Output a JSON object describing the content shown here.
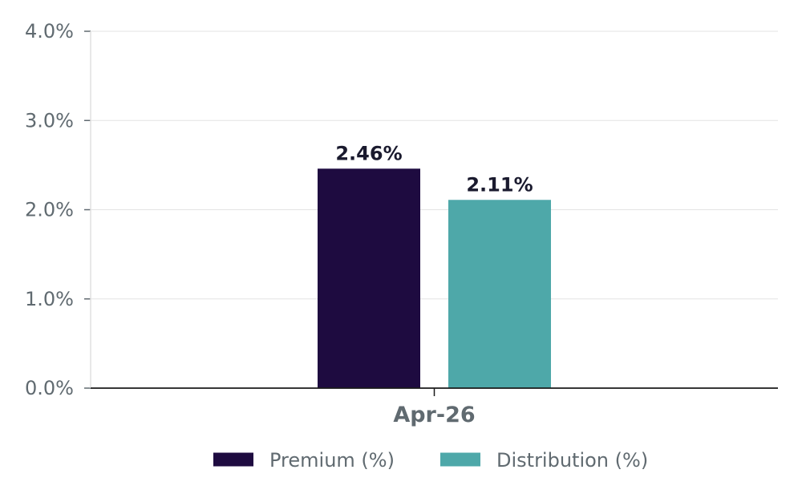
{
  "chart_data": {
    "type": "bar",
    "categories": [
      "Apr-26"
    ],
    "series": [
      {
        "name": "Premium (%)",
        "values": [
          2.46
        ],
        "color": "#1e0b40",
        "label": "2.46%"
      },
      {
        "name": "Distribution (%)",
        "values": [
          2.11
        ],
        "color": "#4ea8a9",
        "label": "2.11%"
      }
    ],
    "ylim": [
      0,
      4
    ],
    "yticks": [
      0,
      1,
      2,
      3,
      4
    ],
    "ytick_labels": [
      "0.0%",
      "1.0%",
      "2.0%",
      "3.0%",
      "4.0%"
    ],
    "grid": true,
    "legend": "bottom-center",
    "title": "",
    "xlabel": "",
    "ylabel": ""
  }
}
